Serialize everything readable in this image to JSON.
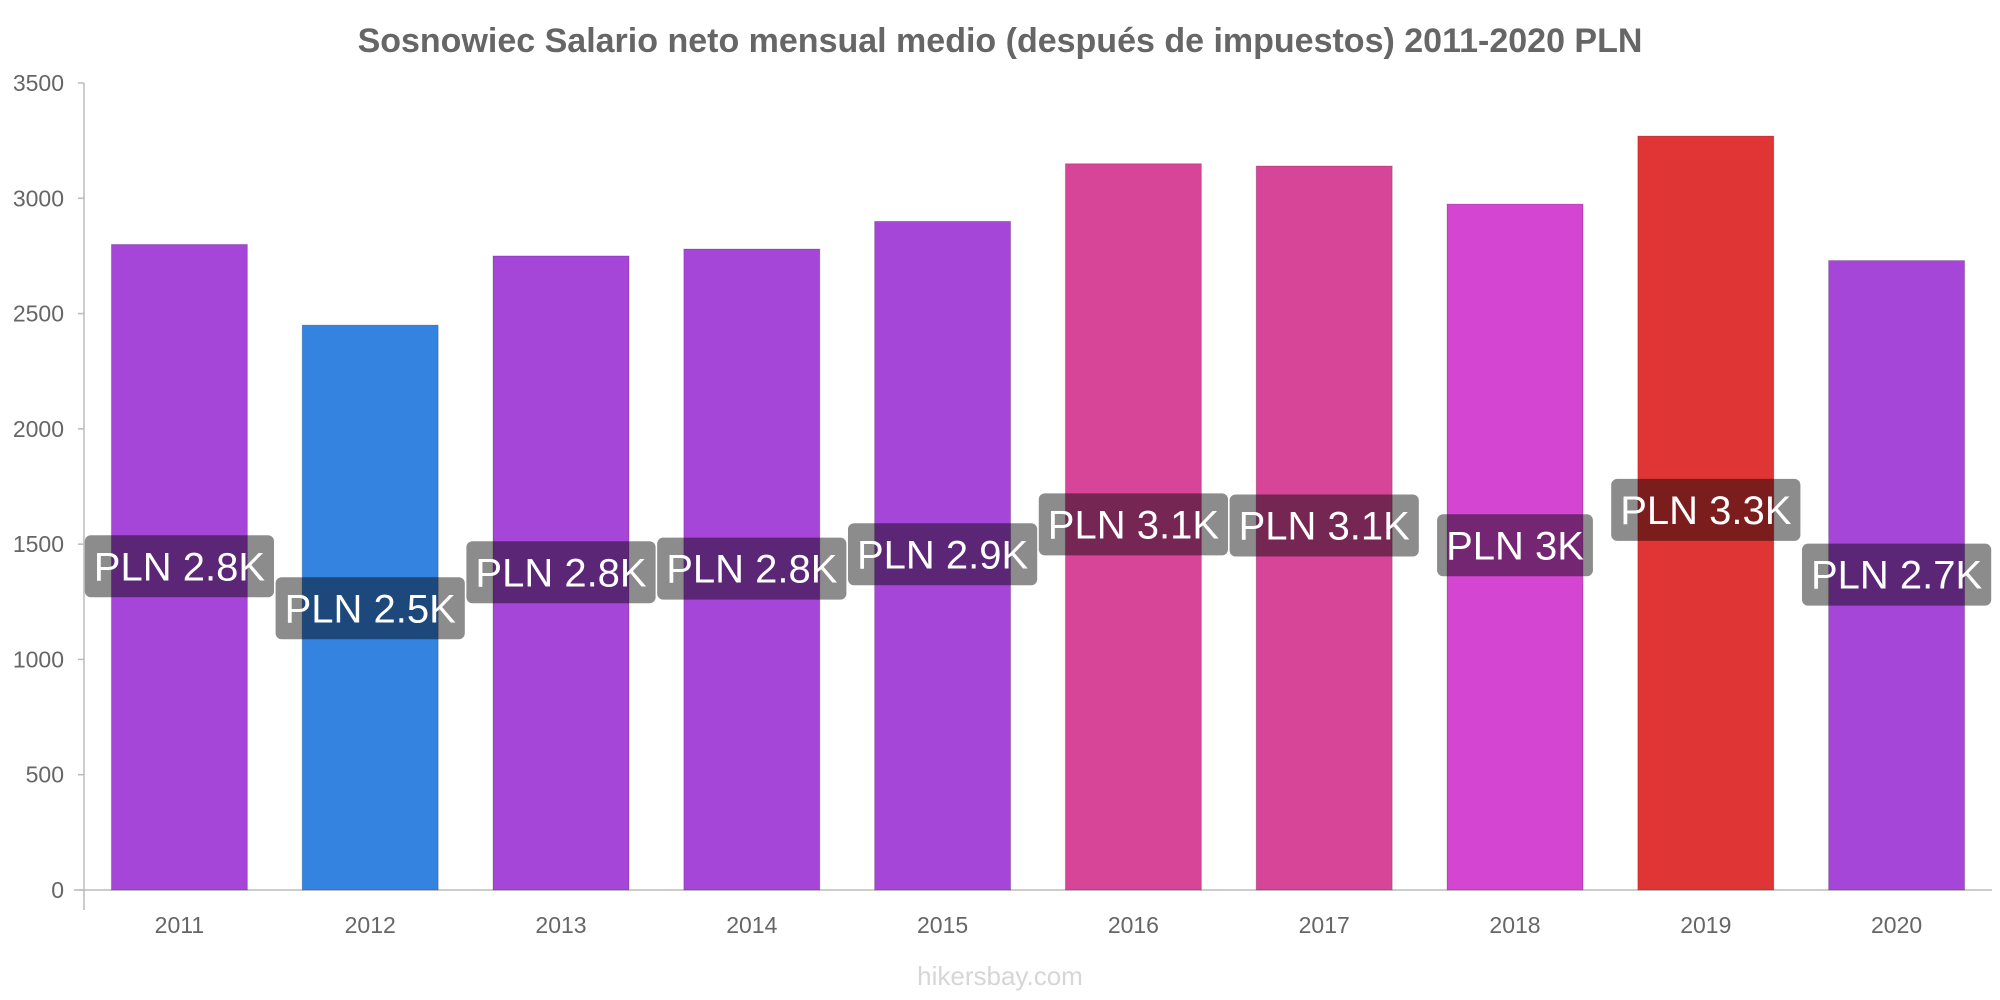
{
  "chart_data": {
    "type": "bar",
    "title": "Sosnowiec Salario neto mensual medio (después de impuestos) 2011-2020 PLN",
    "xlabel": "",
    "ylabel": "",
    "ylim": [
      0,
      3500
    ],
    "yticks": [
      0,
      500,
      1000,
      1500,
      2000,
      2500,
      3000,
      3500
    ],
    "grid": false,
    "legend": "none",
    "categories": [
      "2011",
      "2012",
      "2013",
      "2014",
      "2015",
      "2016",
      "2017",
      "2018",
      "2019",
      "2020"
    ],
    "values": [
      2800,
      2450,
      2750,
      2780,
      2900,
      3150,
      3140,
      2975,
      3270,
      2730
    ],
    "data_labels": [
      "PLN 2.8K",
      "PLN 2.5K",
      "PLN 2.8K",
      "PLN 2.8K",
      "PLN 2.9K",
      "PLN 3.1K",
      "PLN 3.1K",
      "PLN 3K",
      "PLN 3.3K",
      "PLN 2.7K"
    ],
    "bar_colors": [
      "#a646d8",
      "#3483e0",
      "#a646d8",
      "#a646d8",
      "#a646d8",
      "#d64598",
      "#d64598",
      "#d445d2",
      "#e03535",
      "#a646d8"
    ],
    "watermark": "hikersbay.com"
  }
}
